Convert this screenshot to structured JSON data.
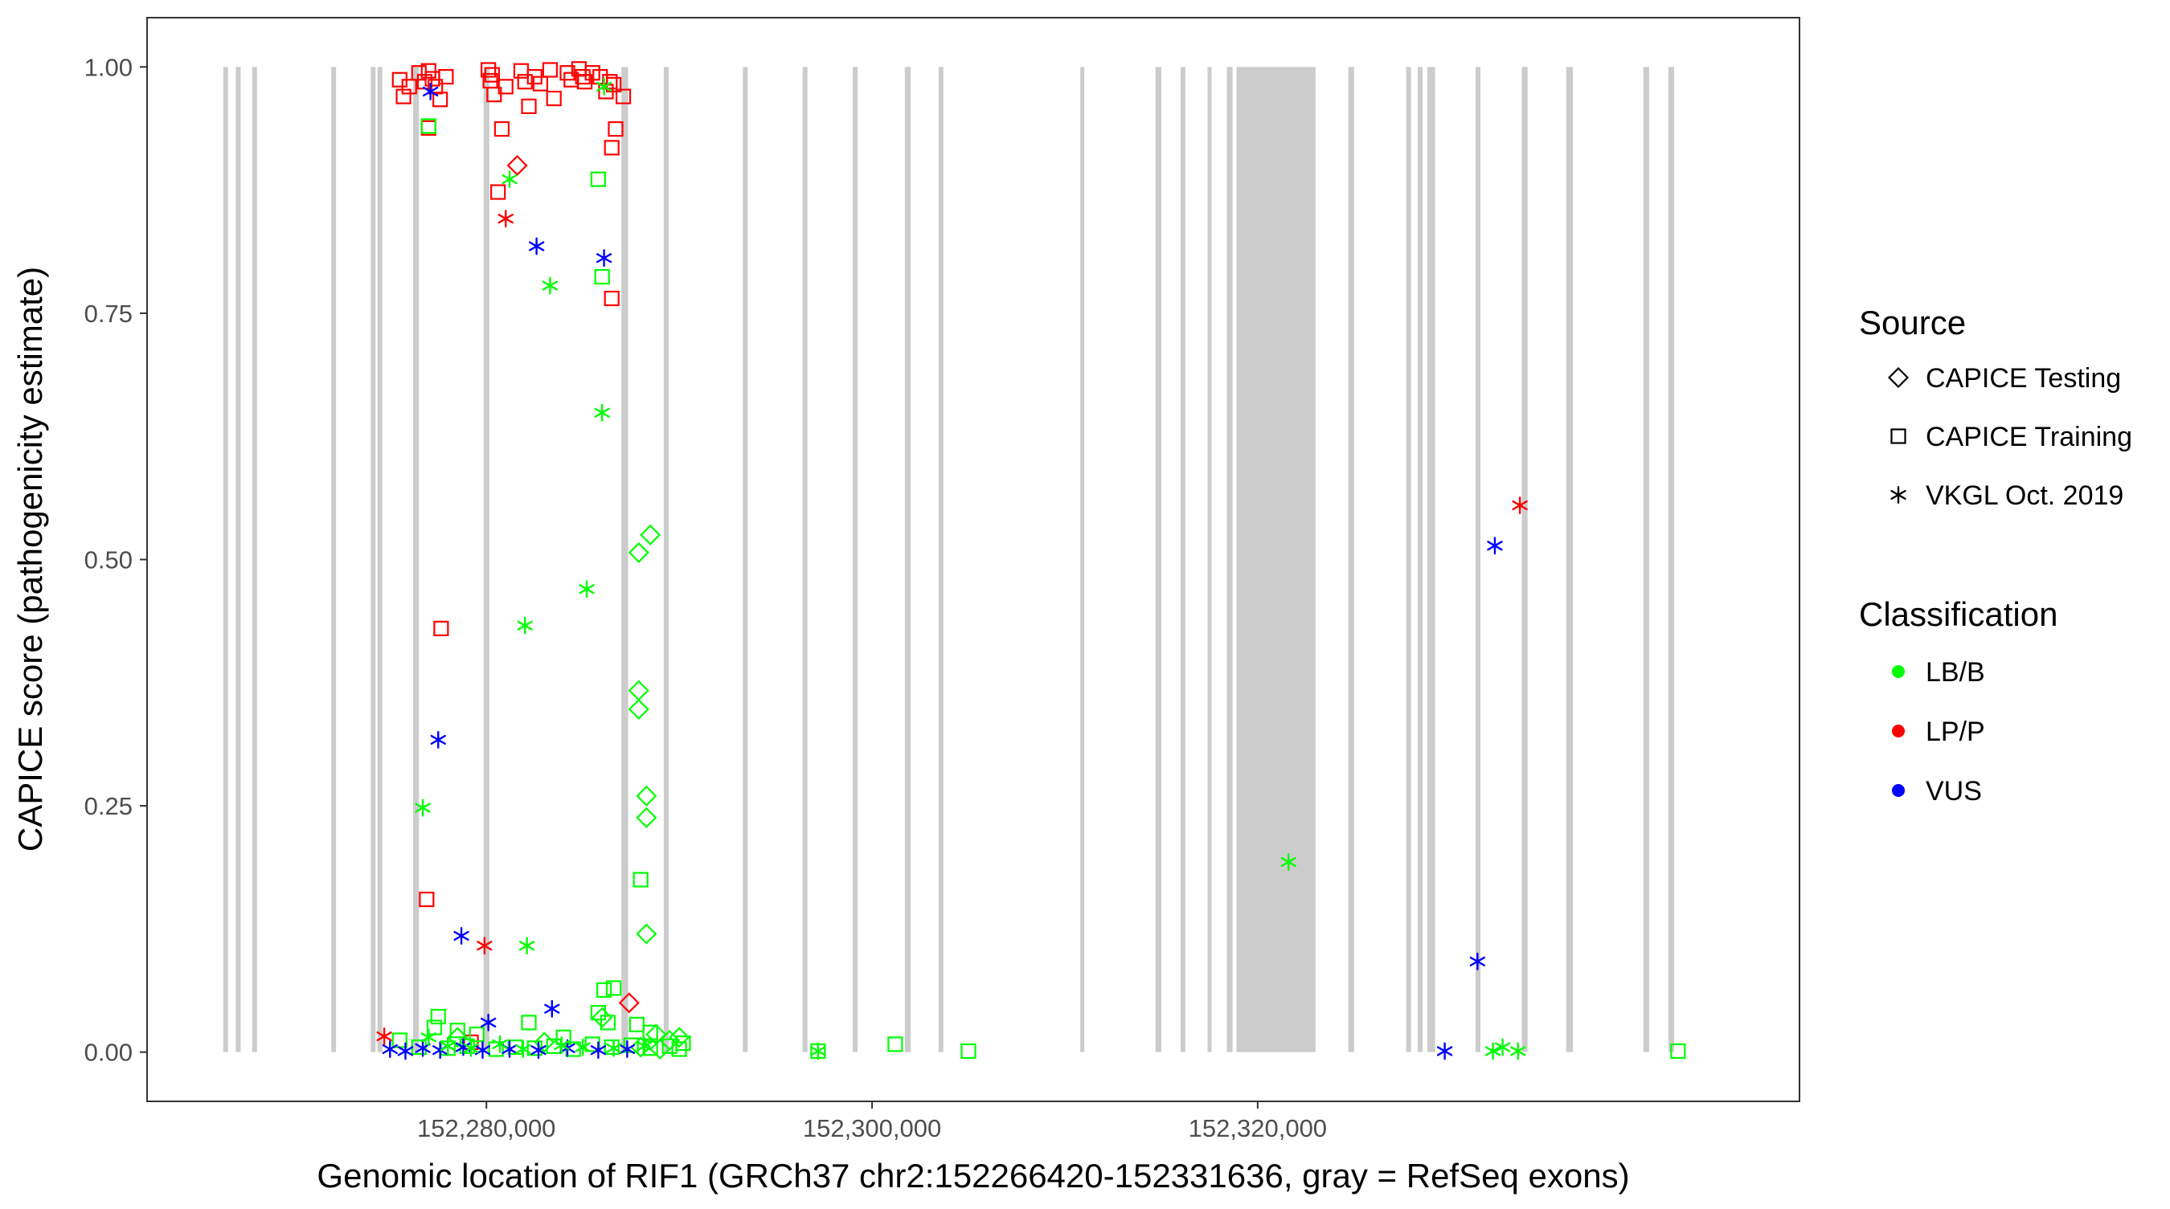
{
  "chart_data": {
    "type": "scatter",
    "title": "",
    "xlabel": "Genomic location of RIF1 (GRCh37 chr2:152266420-152331636, gray = RefSeq exons)",
    "ylabel": "CAPICE score (pathogenicity estimate)",
    "xlim": [
      152262400,
      152348100
    ],
    "ylim": [
      -0.05,
      1.05
    ],
    "x_ticks": [
      152280000,
      152300000,
      152320000
    ],
    "x_tick_labels": [
      "152,280,000",
      "152,300,000",
      "152,320,000"
    ],
    "y_ticks": [
      0.0,
      0.25,
      0.5,
      0.75,
      1.0
    ],
    "y_tick_labels": [
      "0.00",
      "0.25",
      "0.50",
      "0.75",
      "1.00"
    ],
    "grid": false,
    "legend_position": "right",
    "colors": {
      "LB/B": "#00ff00",
      "LP/P": "#ff0000",
      "VUS": "#0000ff",
      "exon": "#cccccc",
      "axis": "#333333"
    },
    "legend": {
      "source_title": "Source",
      "source_entries": [
        {
          "label": "CAPICE Testing",
          "shape": "diamond"
        },
        {
          "label": "CAPICE Training",
          "shape": "square"
        },
        {
          "label": "VKGL Oct. 2019",
          "shape": "asterisk"
        }
      ],
      "classification_title": "Classification",
      "classification_entries": [
        {
          "label": "LB/B",
          "color": "#00ff00"
        },
        {
          "label": "LP/P",
          "color": "#ff0000"
        },
        {
          "label": "VUS",
          "color": "#0000ff"
        }
      ]
    },
    "exons": [
      [
        152266350,
        152266600
      ],
      [
        152267000,
        152267250
      ],
      [
        152267850,
        152268100
      ],
      [
        152271950,
        152272200
      ],
      [
        152274000,
        152274250
      ],
      [
        152274350,
        152274600
      ],
      [
        152276200,
        152276500
      ],
      [
        152279850,
        152280150
      ],
      [
        152287000,
        152287350
      ],
      [
        152289200,
        152289450
      ],
      [
        152293300,
        152293550
      ],
      [
        152296400,
        152296650
      ],
      [
        152299000,
        152299250
      ],
      [
        152301700,
        152302000
      ],
      [
        152303450,
        152303700
      ],
      [
        152310800,
        152311000
      ],
      [
        152314700,
        152315000
      ],
      [
        152316000,
        152316250
      ],
      [
        152317400,
        152317600
      ],
      [
        152318400,
        152318700
      ],
      [
        152318900,
        152323000
      ],
      [
        152324700,
        152325000
      ],
      [
        152327700,
        152327950
      ],
      [
        152328300,
        152328550
      ],
      [
        152328800,
        152329200
      ],
      [
        152331300,
        152331550
      ],
      [
        152333700,
        152334000
      ],
      [
        152336000,
        152336350
      ],
      [
        152340000,
        152340300
      ],
      [
        152341300,
        152341600
      ]
    ],
    "series": [
      {
        "name": "CAPICE Training",
        "shape": "square",
        "points": [
          {
            "x": 152275500,
            "y": 0.987,
            "c": "LP/P"
          },
          {
            "x": 152276000,
            "y": 0.98,
            "c": "LP/P"
          },
          {
            "x": 152275700,
            "y": 0.97,
            "c": "LP/P"
          },
          {
            "x": 152276500,
            "y": 0.994,
            "c": "LP/P"
          },
          {
            "x": 152276800,
            "y": 0.985,
            "c": "LP/P"
          },
          {
            "x": 152277000,
            "y": 0.996,
            "c": "LP/P"
          },
          {
            "x": 152277200,
            "y": 0.988,
            "c": "LP/P"
          },
          {
            "x": 152277350,
            "y": 0.98,
            "c": "LP/P"
          },
          {
            "x": 152277600,
            "y": 0.967,
            "c": "LP/P"
          },
          {
            "x": 152277900,
            "y": 0.99,
            "c": "LP/P"
          },
          {
            "x": 152277000,
            "y": 0.938,
            "c": "LP/P"
          },
          {
            "x": 152280100,
            "y": 0.997,
            "c": "LP/P"
          },
          {
            "x": 152280300,
            "y": 0.992,
            "c": "LP/P"
          },
          {
            "x": 152280200,
            "y": 0.986,
            "c": "LP/P"
          },
          {
            "x": 152280400,
            "y": 0.972,
            "c": "LP/P"
          },
          {
            "x": 152281000,
            "y": 0.98,
            "c": "LP/P"
          },
          {
            "x": 152280800,
            "y": 0.937,
            "c": "LP/P"
          },
          {
            "x": 152281800,
            "y": 0.996,
            "c": "LP/P"
          },
          {
            "x": 152282000,
            "y": 0.985,
            "c": "LP/P"
          },
          {
            "x": 152282200,
            "y": 0.96,
            "c": "LP/P"
          },
          {
            "x": 152282500,
            "y": 0.99,
            "c": "LP/P"
          },
          {
            "x": 152282800,
            "y": 0.983,
            "c": "LP/P"
          },
          {
            "x": 152283300,
            "y": 0.997,
            "c": "LP/P"
          },
          {
            "x": 152283500,
            "y": 0.968,
            "c": "LP/P"
          },
          {
            "x": 152284200,
            "y": 0.994,
            "c": "LP/P"
          },
          {
            "x": 152284400,
            "y": 0.987,
            "c": "LP/P"
          },
          {
            "x": 152284800,
            "y": 0.998,
            "c": "LP/P"
          },
          {
            "x": 152285000,
            "y": 0.99,
            "c": "LP/P"
          },
          {
            "x": 152285100,
            "y": 0.985,
            "c": "LP/P"
          },
          {
            "x": 152285500,
            "y": 0.994,
            "c": "LP/P"
          },
          {
            "x": 152285900,
            "y": 0.99,
            "c": "LP/P"
          },
          {
            "x": 152286400,
            "y": 0.985,
            "c": "LP/P"
          },
          {
            "x": 152286200,
            "y": 0.975,
            "c": "LP/P"
          },
          {
            "x": 152286600,
            "y": 0.982,
            "c": "LP/P"
          },
          {
            "x": 152286700,
            "y": 0.937,
            "c": "LP/P"
          },
          {
            "x": 152286500,
            "y": 0.918,
            "c": "LP/P"
          },
          {
            "x": 152287100,
            "y": 0.97,
            "c": "LP/P"
          },
          {
            "x": 152280600,
            "y": 0.873,
            "c": "LP/P"
          },
          {
            "x": 152286500,
            "y": 0.765,
            "c": "LP/P"
          },
          {
            "x": 152277650,
            "y": 0.43,
            "c": "LP/P"
          },
          {
            "x": 152276900,
            "y": 0.155,
            "c": "LP/P"
          },
          {
            "x": 152279200,
            "y": 0.01,
            "c": "LP/P"
          },
          {
            "x": 152277000,
            "y": 0.94,
            "c": "LB/B"
          },
          {
            "x": 152285800,
            "y": 0.886,
            "c": "LB/B"
          },
          {
            "x": 152286000,
            "y": 0.787,
            "c": "LB/B"
          },
          {
            "x": 152288000,
            "y": 0.175,
            "c": "LB/B"
          },
          {
            "x": 152286100,
            "y": 0.063,
            "c": "LB/B"
          },
          {
            "x": 152286600,
            "y": 0.065,
            "c": "LB/B"
          },
          {
            "x": 152285800,
            "y": 0.04,
            "c": "LB/B"
          },
          {
            "x": 152286300,
            "y": 0.03,
            "c": "LB/B"
          },
          {
            "x": 152277500,
            "y": 0.036,
            "c": "LB/B"
          },
          {
            "x": 152277300,
            "y": 0.025,
            "c": "LB/B"
          },
          {
            "x": 152278500,
            "y": 0.022,
            "c": "LB/B"
          },
          {
            "x": 152279500,
            "y": 0.018,
            "c": "LB/B"
          },
          {
            "x": 152282200,
            "y": 0.03,
            "c": "LB/B"
          },
          {
            "x": 152284000,
            "y": 0.015,
            "c": "LB/B"
          },
          {
            "x": 152287800,
            "y": 0.028,
            "c": "LB/B"
          },
          {
            "x": 152288500,
            "y": 0.02,
            "c": "LB/B"
          },
          {
            "x": 152275500,
            "y": 0.012,
            "c": "LB/B"
          },
          {
            "x": 152276500,
            "y": 0.005,
            "c": "LB/B"
          },
          {
            "x": 152278000,
            "y": 0.004,
            "c": "LB/B"
          },
          {
            "x": 152279000,
            "y": 0.006,
            "c": "LB/B"
          },
          {
            "x": 152280500,
            "y": 0.003,
            "c": "LB/B"
          },
          {
            "x": 152281500,
            "y": 0.005,
            "c": "LB/B"
          },
          {
            "x": 152282500,
            "y": 0.004,
            "c": "LB/B"
          },
          {
            "x": 152283500,
            "y": 0.006,
            "c": "LB/B"
          },
          {
            "x": 152284500,
            "y": 0.003,
            "c": "LB/B"
          },
          {
            "x": 152285500,
            "y": 0.008,
            "c": "LB/B"
          },
          {
            "x": 152286500,
            "y": 0.005,
            "c": "LB/B"
          },
          {
            "x": 152287500,
            "y": 0.007,
            "c": "LB/B"
          },
          {
            "x": 152288500,
            "y": 0.004,
            "c": "LB/B"
          },
          {
            "x": 152289500,
            "y": 0.006,
            "c": "LB/B"
          },
          {
            "x": 152290000,
            "y": 0.003,
            "c": "LB/B"
          },
          {
            "x": 152290200,
            "y": 0.009,
            "c": "LB/B"
          },
          {
            "x": 152297200,
            "y": 0.001,
            "c": "LB/B"
          },
          {
            "x": 152301200,
            "y": 0.008,
            "c": "LB/B"
          },
          {
            "x": 152305000,
            "y": 0.001,
            "c": "LB/B"
          },
          {
            "x": 152341800,
            "y": 0.001,
            "c": "LB/B"
          }
        ]
      },
      {
        "name": "CAPICE Testing",
        "shape": "diamond",
        "points": [
          {
            "x": 152281600,
            "y": 0.9,
            "c": "LP/P"
          },
          {
            "x": 152287400,
            "y": 0.05,
            "c": "LP/P"
          },
          {
            "x": 152288500,
            "y": 0.525,
            "c": "LB/B"
          },
          {
            "x": 152287900,
            "y": 0.507,
            "c": "LB/B"
          },
          {
            "x": 152287900,
            "y": 0.367,
            "c": "LB/B"
          },
          {
            "x": 152287900,
            "y": 0.348,
            "c": "LB/B"
          },
          {
            "x": 152288300,
            "y": 0.26,
            "c": "LB/B"
          },
          {
            "x": 152288300,
            "y": 0.238,
            "c": "LB/B"
          },
          {
            "x": 152288300,
            "y": 0.12,
            "c": "LB/B"
          },
          {
            "x": 152288800,
            "y": 0.018,
            "c": "LB/B"
          },
          {
            "x": 152289500,
            "y": 0.012,
            "c": "LB/B"
          },
          {
            "x": 152290000,
            "y": 0.015,
            "c": "LB/B"
          },
          {
            "x": 152286000,
            "y": 0.035,
            "c": "LB/B"
          },
          {
            "x": 152278500,
            "y": 0.015,
            "c": "LB/B"
          },
          {
            "x": 152283000,
            "y": 0.01,
            "c": "LB/B"
          },
          {
            "x": 152288000,
            "y": 0.005,
            "c": "LB/B"
          },
          {
            "x": 152289000,
            "y": 0.003,
            "c": "LB/B"
          }
        ]
      },
      {
        "name": "VKGL Oct. 2019",
        "shape": "asterisk",
        "points": [
          {
            "x": 152277100,
            "y": 0.975,
            "c": "VUS"
          },
          {
            "x": 152282600,
            "y": 0.818,
            "c": "VUS"
          },
          {
            "x": 152286100,
            "y": 0.806,
            "c": "VUS"
          },
          {
            "x": 152277500,
            "y": 0.317,
            "c": "VUS"
          },
          {
            "x": 152278700,
            "y": 0.118,
            "c": "VUS"
          },
          {
            "x": 152283400,
            "y": 0.044,
            "c": "VUS"
          },
          {
            "x": 152280100,
            "y": 0.03,
            "c": "VUS"
          },
          {
            "x": 152275000,
            "y": 0.003,
            "c": "VUS"
          },
          {
            "x": 152275800,
            "y": 0.001,
            "c": "VUS"
          },
          {
            "x": 152276700,
            "y": 0.004,
            "c": "VUS"
          },
          {
            "x": 152277600,
            "y": 0.002,
            "c": "VUS"
          },
          {
            "x": 152278800,
            "y": 0.005,
            "c": "VUS"
          },
          {
            "x": 152279800,
            "y": 0.002,
            "c": "VUS"
          },
          {
            "x": 152281200,
            "y": 0.003,
            "c": "VUS"
          },
          {
            "x": 152282700,
            "y": 0.002,
            "c": "VUS"
          },
          {
            "x": 152284200,
            "y": 0.004,
            "c": "VUS"
          },
          {
            "x": 152285800,
            "y": 0.002,
            "c": "VUS"
          },
          {
            "x": 152287300,
            "y": 0.003,
            "c": "VUS"
          },
          {
            "x": 152329700,
            "y": 0.001,
            "c": "VUS"
          },
          {
            "x": 152331400,
            "y": 0.092,
            "c": "VUS"
          },
          {
            "x": 152332300,
            "y": 0.514,
            "c": "VUS"
          },
          {
            "x": 152281000,
            "y": 0.846,
            "c": "LP/P"
          },
          {
            "x": 152279900,
            "y": 0.108,
            "c": "LP/P"
          },
          {
            "x": 152274700,
            "y": 0.016,
            "c": "LP/P"
          },
          {
            "x": 152333600,
            "y": 0.555,
            "c": "LP/P"
          },
          {
            "x": 152281200,
            "y": 0.886,
            "c": "LB/B"
          },
          {
            "x": 152286100,
            "y": 0.98,
            "c": "LB/B"
          },
          {
            "x": 152283300,
            "y": 0.778,
            "c": "LB/B"
          },
          {
            "x": 152286000,
            "y": 0.649,
            "c": "LB/B"
          },
          {
            "x": 152285200,
            "y": 0.47,
            "c": "LB/B"
          },
          {
            "x": 152282000,
            "y": 0.433,
            "c": "LB/B"
          },
          {
            "x": 152276700,
            "y": 0.248,
            "c": "LB/B"
          },
          {
            "x": 152282100,
            "y": 0.108,
            "c": "LB/B"
          },
          {
            "x": 152277000,
            "y": 0.015,
            "c": "LB/B"
          },
          {
            "x": 152278000,
            "y": 0.006,
            "c": "LB/B"
          },
          {
            "x": 152279200,
            "y": 0.004,
            "c": "LB/B"
          },
          {
            "x": 152280700,
            "y": 0.008,
            "c": "LB/B"
          },
          {
            "x": 152281900,
            "y": 0.003,
            "c": "LB/B"
          },
          {
            "x": 152283900,
            "y": 0.007,
            "c": "LB/B"
          },
          {
            "x": 152285000,
            "y": 0.005,
            "c": "LB/B"
          },
          {
            "x": 152286600,
            "y": 0.004,
            "c": "LB/B"
          },
          {
            "x": 152288200,
            "y": 0.006,
            "c": "LB/B"
          },
          {
            "x": 152297200,
            "y": 0.001,
            "c": "LB/B"
          },
          {
            "x": 152321600,
            "y": 0.193,
            "c": "LB/B"
          },
          {
            "x": 152332200,
            "y": 0.001,
            "c": "LB/B"
          },
          {
            "x": 152332700,
            "y": 0.005,
            "c": "LB/B"
          },
          {
            "x": 152333500,
            "y": 0.001,
            "c": "LB/B"
          }
        ]
      }
    ]
  }
}
